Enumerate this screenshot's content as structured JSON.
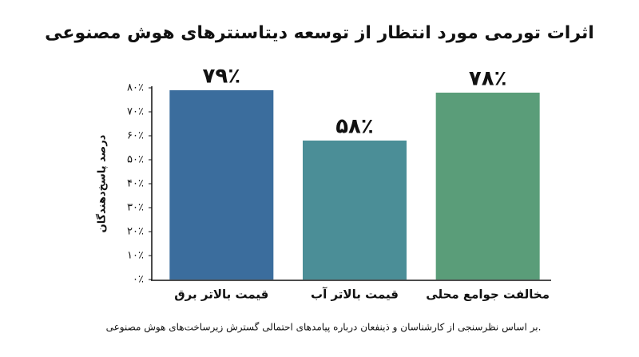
{
  "chart_data": {
    "type": "bar",
    "title": "اثرات تورمی مورد انتظار از توسعه دیتاسنترهای هوش مصنوعی",
    "y_label": "درصد پاسخ‌دهندگان",
    "note": "بر اساس نظرسنجی از کارشناسان و ذینفعان درباره پیامدهای احتمالی گسترش زیرساخت‌های هوش مصنوعی.",
    "categories": [
      "قیمت بالاتر برق",
      "قیمت بالاتر آب",
      "مخالفت جوامع محلی"
    ],
    "values": [
      79,
      58,
      78
    ],
    "value_labels": [
      "۷۹٪",
      "۵۸٪",
      "۷۸٪"
    ],
    "colors": [
      "#3b6d9d",
      "#4b8e97",
      "#5a9d79"
    ],
    "ylim": [
      0,
      80
    ],
    "yticks": [
      {
        "value": 0,
        "label": "۰٪"
      },
      {
        "value": 10,
        "label": "۱۰٪"
      },
      {
        "value": 20,
        "label": "۲۰٪"
      },
      {
        "value": 30,
        "label": "۳۰٪"
      },
      {
        "value": 40,
        "label": "۴۰٪"
      },
      {
        "value": 50,
        "label": "۵۰٪"
      },
      {
        "value": 60,
        "label": "۶۰٪"
      },
      {
        "value": 70,
        "label": "۷۰٪"
      },
      {
        "value": 80,
        "label": "۸۰٪"
      }
    ],
    "grid": false
  }
}
